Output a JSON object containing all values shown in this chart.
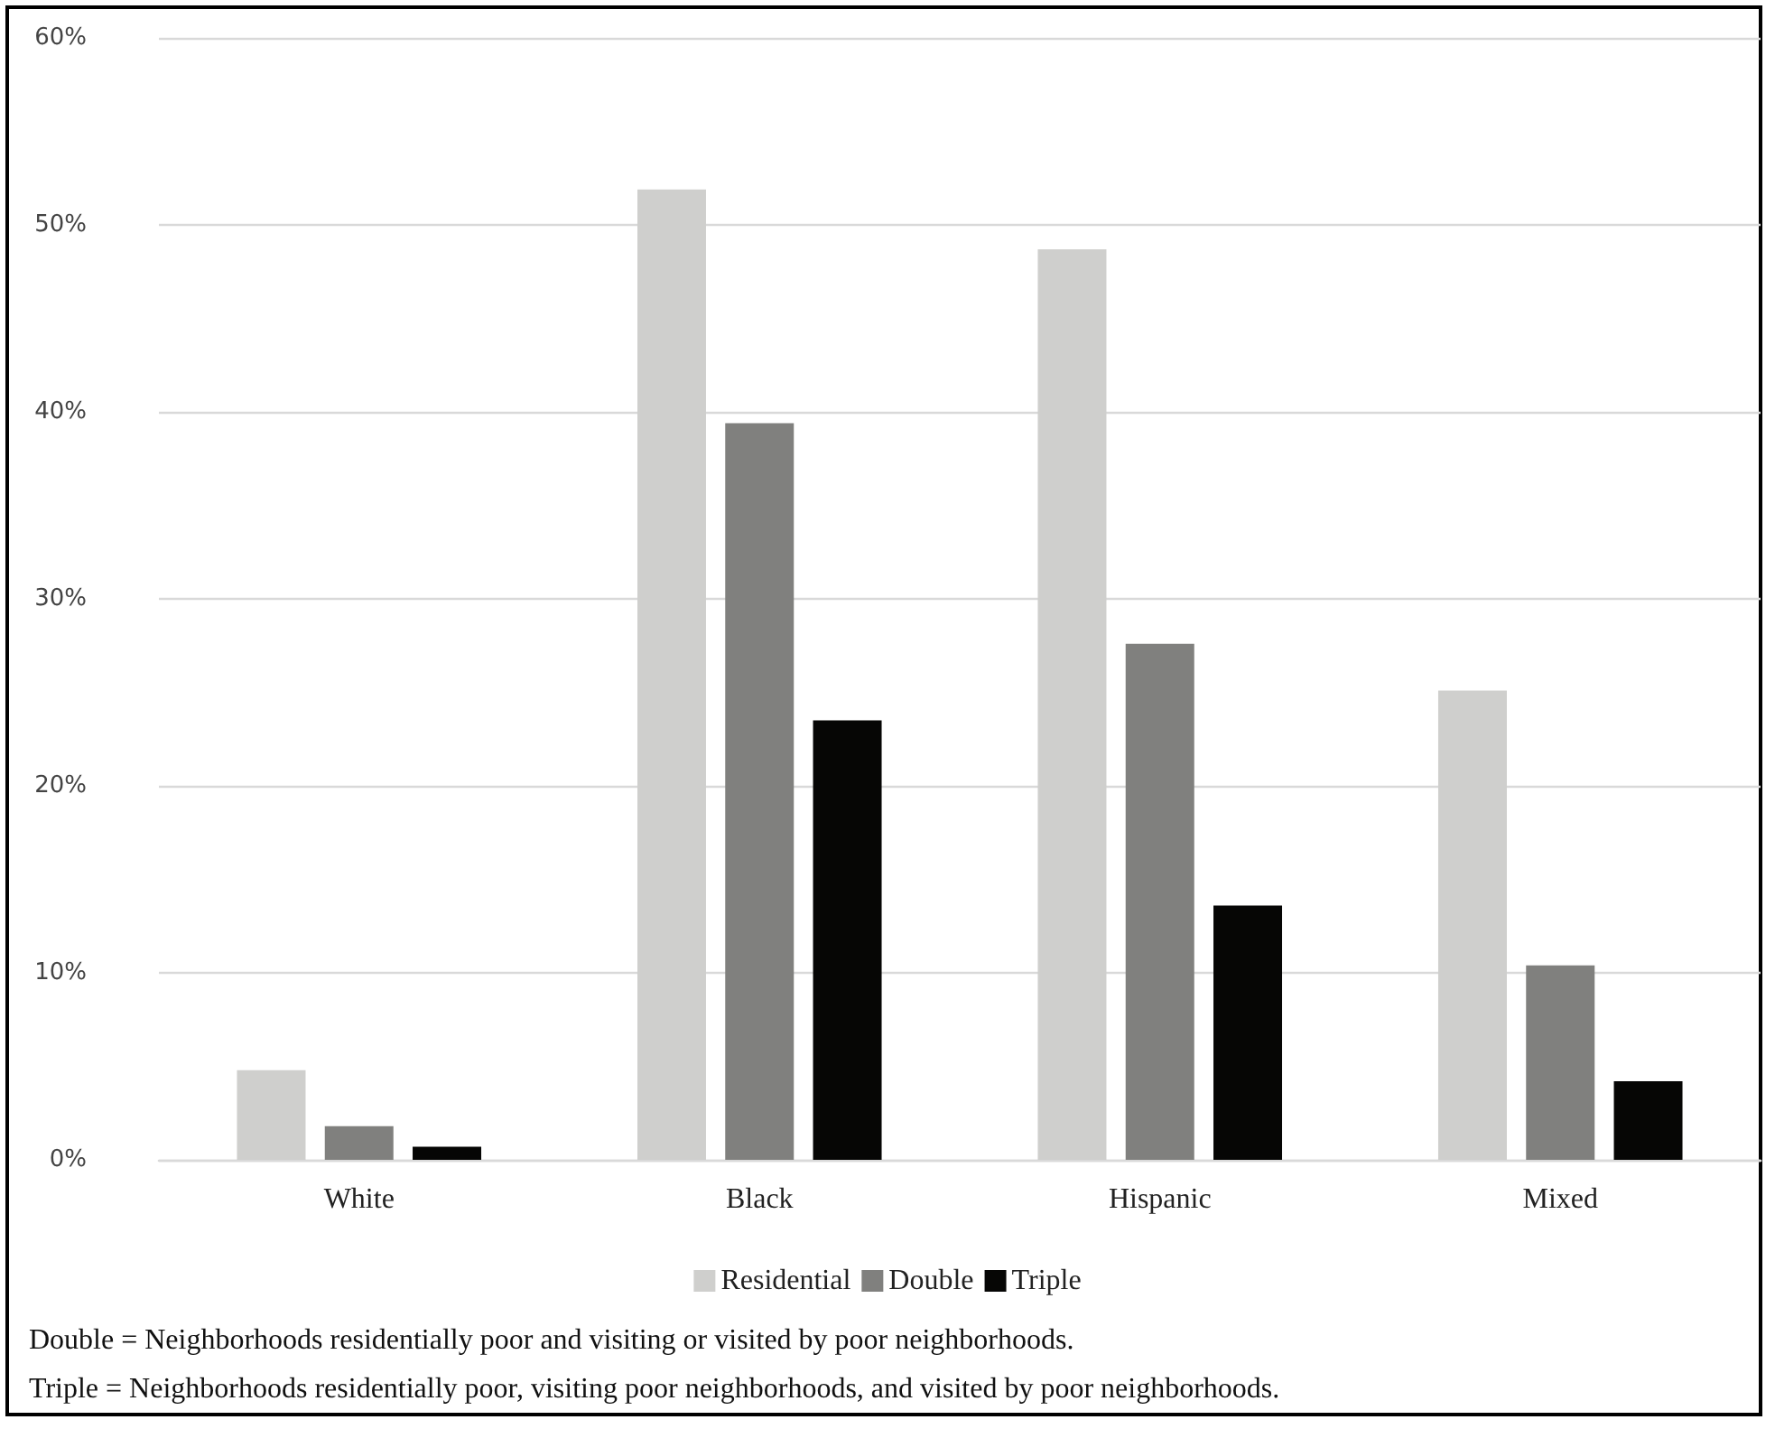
{
  "chart_data": {
    "type": "bar",
    "categories": [
      "White",
      "Black",
      "Hispanic",
      "Mixed"
    ],
    "series": [
      {
        "name": "Residential",
        "color": "#cfcfcd",
        "values": [
          4.8,
          51.9,
          48.7,
          25.1
        ]
      },
      {
        "name": "Double",
        "color": "#80807e",
        "values": [
          1.8,
          39.4,
          27.6,
          10.4
        ]
      },
      {
        "name": "Triple",
        "color": "#060605",
        "values": [
          0.7,
          23.5,
          13.6,
          4.2
        ]
      }
    ],
    "ylim": [
      0,
      60
    ],
    "yticks": [
      {
        "value": 0,
        "label": "0%"
      },
      {
        "value": 10,
        "label": "10%"
      },
      {
        "value": 20,
        "label": "20%"
      },
      {
        "value": 30,
        "label": "30%"
      },
      {
        "value": 40,
        "label": "40%"
      },
      {
        "value": 50,
        "label": "50%"
      },
      {
        "value": 60,
        "label": "60%"
      }
    ],
    "grid": "y",
    "legend": "bottom",
    "annotations": [
      "Double = Neighborhoods residentially poor and visiting or visited by poor neighborhoods.",
      "Triple = Neighborhoods residentially poor, visiting poor neighborhoods, and visited by poor neighborhoods."
    ]
  }
}
